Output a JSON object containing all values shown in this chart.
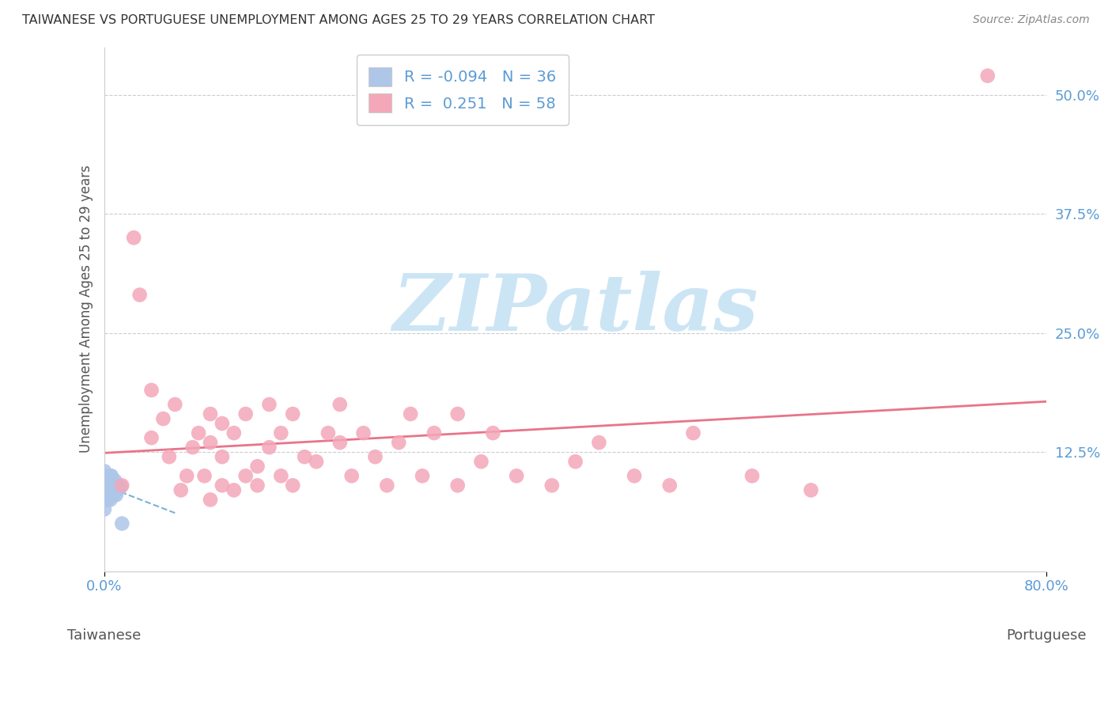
{
  "title": "TAIWANESE VS PORTUGUESE UNEMPLOYMENT AMONG AGES 25 TO 29 YEARS CORRELATION CHART",
  "source": "Source: ZipAtlas.com",
  "ylabel": "Unemployment Among Ages 25 to 29 years",
  "x_label_left": "Taiwanese",
  "x_label_right": "Portuguese",
  "xlim": [
    0.0,
    0.8
  ],
  "ylim": [
    0.0,
    0.55
  ],
  "yticks": [
    0.0,
    0.125,
    0.25,
    0.375,
    0.5
  ],
  "ytick_labels": [
    "",
    "12.5%",
    "25.0%",
    "37.5%",
    "50.0%"
  ],
  "xticks": [
    0.0,
    0.8
  ],
  "xtick_labels": [
    "0.0%",
    "80.0%"
  ],
  "taiwanese_R": -0.094,
  "taiwanese_N": 36,
  "portuguese_R": 0.251,
  "portuguese_N": 58,
  "taiwanese_color": "#aec6e8",
  "portuguese_color": "#f4a7b9",
  "taiwanese_line_color": "#7ab3d8",
  "portuguese_line_color": "#e8748a",
  "background_color": "#ffffff",
  "watermark_color": "#cce5f5",
  "taiwanese_x": [
    0.0,
    0.0,
    0.0,
    0.0,
    0.0,
    0.002,
    0.002,
    0.003,
    0.003,
    0.003,
    0.004,
    0.004,
    0.004,
    0.005,
    0.005,
    0.005,
    0.005,
    0.006,
    0.006,
    0.006,
    0.007,
    0.007,
    0.007,
    0.008,
    0.008,
    0.009,
    0.009,
    0.009,
    0.01,
    0.01,
    0.011,
    0.011,
    0.012,
    0.013,
    0.014,
    0.015
  ],
  "taiwanese_y": [
    0.095,
    0.085,
    0.075,
    0.065,
    0.105,
    0.09,
    0.1,
    0.095,
    0.085,
    0.075,
    0.08,
    0.09,
    0.095,
    0.075,
    0.085,
    0.09,
    0.1,
    0.08,
    0.09,
    0.1,
    0.085,
    0.09,
    0.095,
    0.08,
    0.09,
    0.085,
    0.09,
    0.095,
    0.08,
    0.09,
    0.085,
    0.09,
    0.088,
    0.087,
    0.089,
    0.05
  ],
  "portuguese_x": [
    0.015,
    0.025,
    0.03,
    0.04,
    0.04,
    0.05,
    0.055,
    0.06,
    0.065,
    0.07,
    0.075,
    0.08,
    0.085,
    0.09,
    0.09,
    0.09,
    0.1,
    0.1,
    0.1,
    0.11,
    0.11,
    0.12,
    0.12,
    0.13,
    0.13,
    0.14,
    0.14,
    0.15,
    0.15,
    0.16,
    0.16,
    0.17,
    0.18,
    0.19,
    0.2,
    0.2,
    0.21,
    0.22,
    0.23,
    0.24,
    0.25,
    0.26,
    0.27,
    0.28,
    0.3,
    0.3,
    0.32,
    0.33,
    0.35,
    0.38,
    0.4,
    0.42,
    0.45,
    0.48,
    0.5,
    0.55,
    0.6,
    0.75
  ],
  "portuguese_y": [
    0.09,
    0.35,
    0.29,
    0.19,
    0.14,
    0.16,
    0.12,
    0.175,
    0.085,
    0.1,
    0.13,
    0.145,
    0.1,
    0.135,
    0.165,
    0.075,
    0.09,
    0.12,
    0.155,
    0.085,
    0.145,
    0.1,
    0.165,
    0.11,
    0.09,
    0.13,
    0.175,
    0.1,
    0.145,
    0.09,
    0.165,
    0.12,
    0.115,
    0.145,
    0.135,
    0.175,
    0.1,
    0.145,
    0.12,
    0.09,
    0.135,
    0.165,
    0.1,
    0.145,
    0.09,
    0.165,
    0.115,
    0.145,
    0.1,
    0.09,
    0.115,
    0.135,
    0.1,
    0.09,
    0.145,
    0.1,
    0.085,
    0.52
  ]
}
